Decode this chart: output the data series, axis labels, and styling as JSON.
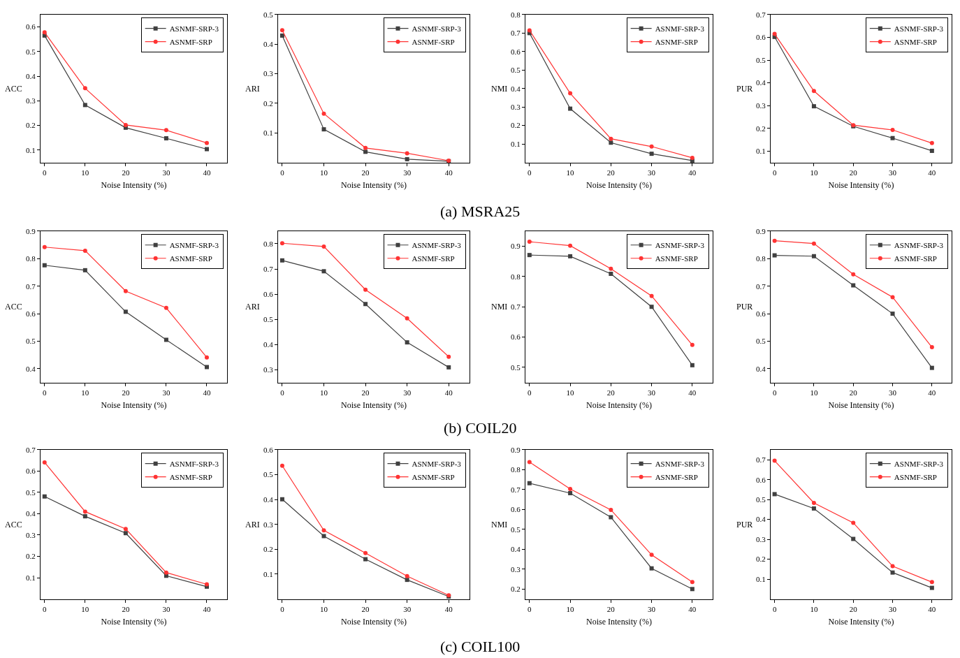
{
  "chart_data": [
    {
      "type": "line",
      "xlabel": "Noise Intensity (%)",
      "ylabel": "ACC",
      "x": [
        0,
        10,
        20,
        30,
        40
      ],
      "xlim": [
        -1,
        45
      ],
      "xticks": [
        0,
        10,
        20,
        30,
        40
      ],
      "ylim": [
        0.05,
        0.65
      ],
      "yticks": [
        0.1,
        0.2,
        0.3,
        0.4,
        0.5,
        0.6
      ],
      "legend": "top right",
      "annotations": [
        "(a) MSRA25"
      ],
      "series": [
        {
          "name": "ASNMF-SRP-3",
          "color": "#404040",
          "marker": "square",
          "values": [
            0.565,
            0.283,
            0.191,
            0.148,
            0.104
          ]
        },
        {
          "name": "ASNMF-SRP",
          "color": "#ff3333",
          "marker": "circle",
          "values": [
            0.578,
            0.351,
            0.202,
            0.181,
            0.129
          ]
        }
      ]
    },
    {
      "type": "line",
      "xlabel": "Noise Intensity (%)",
      "ylabel": "ARI",
      "x": [
        0,
        10,
        20,
        30,
        40
      ],
      "xlim": [
        -1,
        45
      ],
      "xticks": [
        0,
        10,
        20,
        30,
        40
      ],
      "ylim": [
        0,
        0.5
      ],
      "yticks": [
        0.1,
        0.2,
        0.3,
        0.4,
        0.5
      ],
      "legend": "top right",
      "series": [
        {
          "name": "ASNMF-SRP-3",
          "color": "#404040",
          "marker": "square",
          "values": [
            0.429,
            0.112,
            0.036,
            0.011,
            0.004
          ]
        },
        {
          "name": "ASNMF-SRP",
          "color": "#ff3333",
          "marker": "circle",
          "values": [
            0.447,
            0.165,
            0.049,
            0.031,
            0.006
          ]
        }
      ]
    },
    {
      "type": "line",
      "xlabel": "Noise Intensity (%)",
      "ylabel": "NMI",
      "x": [
        0,
        10,
        20,
        30,
        40
      ],
      "xlim": [
        -1,
        45
      ],
      "xticks": [
        0,
        10,
        20,
        30,
        40
      ],
      "ylim": [
        0,
        0.8
      ],
      "yticks": [
        0.1,
        0.2,
        0.3,
        0.4,
        0.5,
        0.6,
        0.7,
        0.8
      ],
      "legend": "top right",
      "series": [
        {
          "name": "ASNMF-SRP-3",
          "color": "#404040",
          "marker": "square",
          "values": [
            0.7,
            0.291,
            0.107,
            0.047,
            0.01
          ]
        },
        {
          "name": "ASNMF-SRP",
          "color": "#ff3333",
          "marker": "circle",
          "values": [
            0.715,
            0.374,
            0.128,
            0.086,
            0.025
          ]
        }
      ]
    },
    {
      "type": "line",
      "xlabel": "Noise Intensity (%)",
      "ylabel": "PUR",
      "x": [
        0,
        10,
        20,
        30,
        40
      ],
      "xlim": [
        -1,
        45
      ],
      "xticks": [
        0,
        10,
        20,
        30,
        40
      ],
      "ylim": [
        0.05,
        0.7
      ],
      "yticks": [
        0.1,
        0.2,
        0.3,
        0.4,
        0.5,
        0.6,
        0.7
      ],
      "legend": "top right",
      "series": [
        {
          "name": "ASNMF-SRP-3",
          "color": "#404040",
          "marker": "square",
          "values": [
            0.602,
            0.297,
            0.209,
            0.157,
            0.101
          ]
        },
        {
          "name": "ASNMF-SRP",
          "color": "#ff3333",
          "marker": "circle",
          "values": [
            0.615,
            0.364,
            0.214,
            0.193,
            0.135
          ]
        }
      ]
    },
    {
      "type": "line",
      "xlabel": "Noise Intensity (%)",
      "ylabel": "ACC",
      "x": [
        0,
        10,
        20,
        30,
        40
      ],
      "xlim": [
        -1,
        45
      ],
      "xticks": [
        0,
        10,
        20,
        30,
        40
      ],
      "ylim": [
        0.35,
        0.9
      ],
      "yticks": [
        0.4,
        0.5,
        0.6,
        0.7,
        0.8,
        0.9
      ],
      "legend": "top right",
      "annotations": [
        "(b) COIL20"
      ],
      "series": [
        {
          "name": "ASNMF-SRP-3",
          "color": "#404040",
          "marker": "square",
          "values": [
            0.776,
            0.758,
            0.607,
            0.505,
            0.406
          ]
        },
        {
          "name": "ASNMF-SRP",
          "color": "#ff3333",
          "marker": "circle",
          "values": [
            0.842,
            0.829,
            0.682,
            0.621,
            0.441
          ]
        }
      ]
    },
    {
      "type": "line",
      "xlabel": "Noise Intensity (%)",
      "ylabel": "ARI",
      "x": [
        0,
        10,
        20,
        30,
        40
      ],
      "xlim": [
        -1,
        45
      ],
      "xticks": [
        0,
        10,
        20,
        30,
        40
      ],
      "ylim": [
        0.25,
        0.85
      ],
      "yticks": [
        0.3,
        0.4,
        0.5,
        0.6,
        0.7,
        0.8
      ],
      "legend": "top right",
      "series": [
        {
          "name": "ASNMF-SRP-3",
          "color": "#404040",
          "marker": "square",
          "values": [
            0.734,
            0.691,
            0.561,
            0.409,
            0.31
          ]
        },
        {
          "name": "ASNMF-SRP",
          "color": "#ff3333",
          "marker": "circle",
          "values": [
            0.802,
            0.789,
            0.618,
            0.504,
            0.352
          ]
        }
      ]
    },
    {
      "type": "line",
      "xlabel": "Noise Intensity (%)",
      "ylabel": "NMI",
      "x": [
        0,
        10,
        20,
        30,
        40
      ],
      "xlim": [
        -1,
        45
      ],
      "xticks": [
        0,
        10,
        20,
        30,
        40
      ],
      "ylim": [
        0.45,
        0.95
      ],
      "yticks": [
        0.5,
        0.6,
        0.7,
        0.8,
        0.9
      ],
      "legend": "top right",
      "series": [
        {
          "name": "ASNMF-SRP-3",
          "color": "#404040",
          "marker": "square",
          "values": [
            0.871,
            0.867,
            0.809,
            0.7,
            0.507
          ]
        },
        {
          "name": "ASNMF-SRP",
          "color": "#ff3333",
          "marker": "circle",
          "values": [
            0.915,
            0.902,
            0.826,
            0.736,
            0.574
          ]
        }
      ]
    },
    {
      "type": "line",
      "xlabel": "Noise Intensity (%)",
      "ylabel": "PUR",
      "x": [
        0,
        10,
        20,
        30,
        40
      ],
      "xlim": [
        -1,
        45
      ],
      "xticks": [
        0,
        10,
        20,
        30,
        40
      ],
      "ylim": [
        0.35,
        0.9
      ],
      "yticks": [
        0.4,
        0.5,
        0.6,
        0.7,
        0.8,
        0.9
      ],
      "legend": "top right",
      "series": [
        {
          "name": "ASNMF-SRP-3",
          "color": "#404040",
          "marker": "square",
          "values": [
            0.812,
            0.809,
            0.703,
            0.6,
            0.403
          ]
        },
        {
          "name": "ASNMF-SRP",
          "color": "#ff3333",
          "marker": "circle",
          "values": [
            0.865,
            0.855,
            0.743,
            0.66,
            0.478
          ]
        }
      ]
    },
    {
      "type": "line",
      "xlabel": "Noise Intensity (%)",
      "ylabel": "ACC",
      "x": [
        0,
        10,
        20,
        30,
        40
      ],
      "xlim": [
        -1,
        45
      ],
      "xticks": [
        0,
        10,
        20,
        30,
        40
      ],
      "ylim": [
        0,
        0.7
      ],
      "yticks": [
        0.1,
        0.2,
        0.3,
        0.4,
        0.5,
        0.6,
        0.7
      ],
      "legend": "top right",
      "annotations": [
        "(c) COIL100"
      ],
      "series": [
        {
          "name": "ASNMF-SRP-3",
          "color": "#404040",
          "marker": "square",
          "values": [
            0.481,
            0.388,
            0.309,
            0.109,
            0.058
          ]
        },
        {
          "name": "ASNMF-SRP",
          "color": "#ff3333",
          "marker": "circle",
          "values": [
            0.641,
            0.41,
            0.329,
            0.124,
            0.069
          ]
        }
      ]
    },
    {
      "type": "line",
      "xlabel": "Noise Intensity (%)",
      "ylabel": "ARI",
      "x": [
        0,
        10,
        20,
        30,
        40
      ],
      "xlim": [
        -1,
        45
      ],
      "xticks": [
        0,
        10,
        20,
        30,
        40
      ],
      "ylim": [
        0,
        0.6
      ],
      "yticks": [
        0.1,
        0.2,
        0.3,
        0.4,
        0.5,
        0.6
      ],
      "legend": "top right",
      "series": [
        {
          "name": "ASNMF-SRP-3",
          "color": "#404040",
          "marker": "square",
          "values": [
            0.401,
            0.253,
            0.16,
            0.077,
            0.01
          ]
        },
        {
          "name": "ASNMF-SRP",
          "color": "#ff3333",
          "marker": "circle",
          "values": [
            0.536,
            0.276,
            0.185,
            0.092,
            0.015
          ]
        }
      ]
    },
    {
      "type": "line",
      "xlabel": "Noise Intensity (%)",
      "ylabel": "NMI",
      "x": [
        0,
        10,
        20,
        30,
        40
      ],
      "xlim": [
        -1,
        45
      ],
      "xticks": [
        0,
        10,
        20,
        30,
        40
      ],
      "ylim": [
        0.15,
        0.9
      ],
      "yticks": [
        0.2,
        0.3,
        0.4,
        0.5,
        0.6,
        0.7,
        0.8,
        0.9
      ],
      "legend": "top right",
      "series": [
        {
          "name": "ASNMF-SRP-3",
          "color": "#404040",
          "marker": "square",
          "values": [
            0.732,
            0.682,
            0.561,
            0.304,
            0.2
          ]
        },
        {
          "name": "ASNMF-SRP",
          "color": "#ff3333",
          "marker": "circle",
          "values": [
            0.838,
            0.703,
            0.598,
            0.372,
            0.235
          ]
        }
      ]
    },
    {
      "type": "line",
      "xlabel": "Noise Intensity (%)",
      "ylabel": "PUR",
      "x": [
        0,
        10,
        20,
        30,
        40
      ],
      "xlim": [
        -1,
        45
      ],
      "xticks": [
        0,
        10,
        20,
        30,
        40
      ],
      "ylim": [
        0,
        0.75
      ],
      "yticks": [
        0.1,
        0.2,
        0.3,
        0.4,
        0.5,
        0.6,
        0.7
      ],
      "legend": "top right",
      "series": [
        {
          "name": "ASNMF-SRP-3",
          "color": "#404040",
          "marker": "square",
          "values": [
            0.527,
            0.455,
            0.302,
            0.133,
            0.056
          ]
        },
        {
          "name": "ASNMF-SRP",
          "color": "#ff3333",
          "marker": "circle",
          "values": [
            0.695,
            0.483,
            0.383,
            0.165,
            0.085
          ]
        }
      ]
    }
  ]
}
